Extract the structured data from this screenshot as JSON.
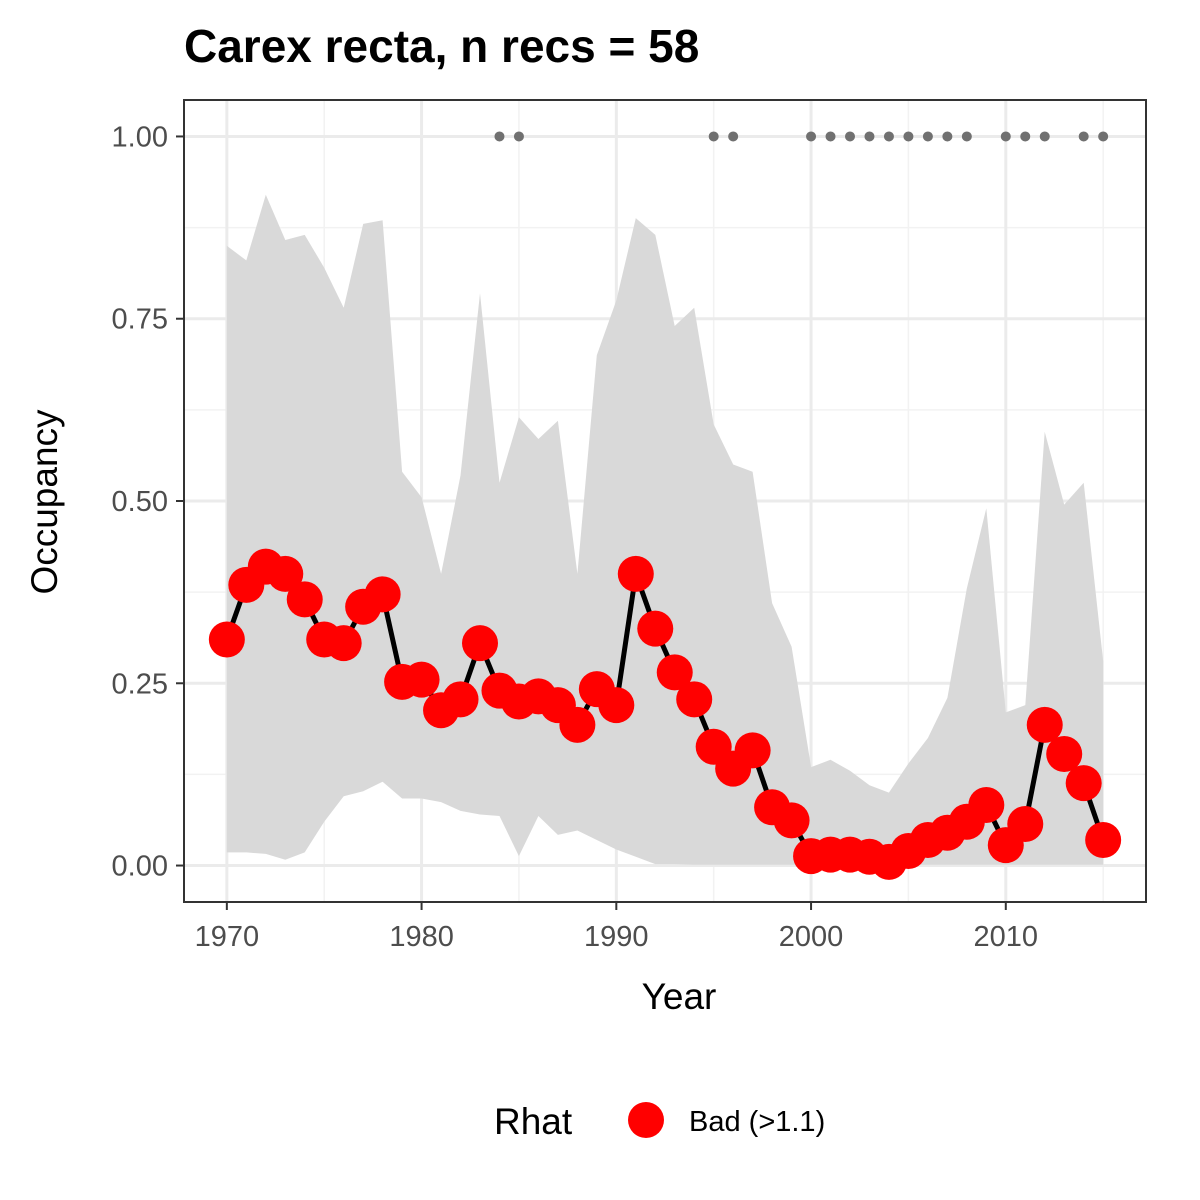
{
  "chart_data": {
    "type": "line",
    "title": "Carex recta, n recs = 58",
    "xlabel": "Year",
    "ylabel": "Occupancy",
    "xlim": [
      1967.8,
      1917.2
    ],
    "ylim": [
      -0.05,
      1.05
    ],
    "x_ticks": [
      1970,
      1980,
      1990,
      2000,
      2010
    ],
    "x_tick_labels": [
      "1970",
      "1980",
      "1990",
      "2000",
      "2010"
    ],
    "y_ticks": [
      0,
      0.25,
      0.5,
      0.75,
      1
    ],
    "y_tick_labels": [
      "0.00",
      "0.25",
      "0.50",
      "0.75",
      "1.00"
    ],
    "grid": true,
    "x": [
      1970,
      1971,
      1972,
      1973,
      1974,
      1975,
      1976,
      1977,
      1978,
      1979,
      1980,
      1981,
      1982,
      1983,
      1984,
      1985,
      1986,
      1987,
      1988,
      1989,
      1990,
      1991,
      1992,
      1993,
      1994,
      1995,
      1996,
      1997,
      1998,
      1999,
      2000,
      2001,
      2002,
      2003,
      2004,
      2005,
      2006,
      2007,
      2008,
      2009,
      2010,
      2011,
      2012,
      2013,
      2014,
      2015
    ],
    "occupancy": [
      0.31,
      0.385,
      0.41,
      0.4,
      0.365,
      0.31,
      0.305,
      0.355,
      0.372,
      0.252,
      0.255,
      0.213,
      0.228,
      0.305,
      0.24,
      0.225,
      0.232,
      0.22,
      0.193,
      0.242,
      0.22,
      0.4,
      0.325,
      0.265,
      0.228,
      0.163,
      0.133,
      0.158,
      0.08,
      0.062,
      0.013,
      0.015,
      0.015,
      0.012,
      0.005,
      0.02,
      0.035,
      0.045,
      0.06,
      0.083,
      0.028,
      0.057,
      0.193,
      0.153,
      0.113,
      0.035
    ],
    "ci_lower": [
      0.018,
      0.018,
      0.016,
      0.008,
      0.018,
      0.06,
      0.095,
      0.102,
      0.115,
      0.092,
      0.092,
      0.087,
      0.075,
      0.07,
      0.068,
      0.013,
      0.068,
      0.042,
      0.048,
      0.035,
      0.022,
      0.012,
      0.002,
      0.002,
      0.001,
      0.001,
      0.001,
      0.001,
      0.001,
      0.001,
      0.001,
      0.001,
      0.001,
      0.001,
      0.001,
      0.001,
      0.001,
      0.001,
      0.001,
      0.001,
      0.001,
      0.001,
      0.001,
      0.001,
      0.001,
      0.001
    ],
    "ci_upper": [
      0.85,
      0.83,
      0.92,
      0.858,
      0.865,
      0.82,
      0.765,
      0.88,
      0.885,
      0.54,
      0.505,
      0.4,
      0.535,
      0.785,
      0.525,
      0.615,
      0.585,
      0.61,
      0.4,
      0.7,
      0.775,
      0.888,
      0.865,
      0.74,
      0.765,
      0.605,
      0.55,
      0.54,
      0.36,
      0.3,
      0.135,
      0.145,
      0.13,
      0.11,
      0.1,
      0.14,
      0.175,
      0.23,
      0.38,
      0.49,
      0.21,
      0.22,
      0.595,
      0.495,
      0.525,
      0.28
    ],
    "record_years": [
      1984,
      1985,
      1995,
      1996,
      2000,
      2001,
      2002,
      2003,
      2004,
      2005,
      2006,
      2007,
      2008,
      2010,
      2011,
      2012,
      2014,
      2015
    ],
    "record_y": 1.0,
    "legend": {
      "position": "bottom",
      "title": "Rhat",
      "entries": [
        {
          "label": "Bad (>1.1)",
          "color": "#ff0000"
        }
      ]
    },
    "colors": {
      "ribbon": "#d9d9d9",
      "line": "#000000",
      "point": "#ff0000",
      "record_point": "#707070",
      "grid_major": "#ebebeb",
      "grid_minor": "#f2f2f2",
      "panel_border": "#333333"
    }
  }
}
